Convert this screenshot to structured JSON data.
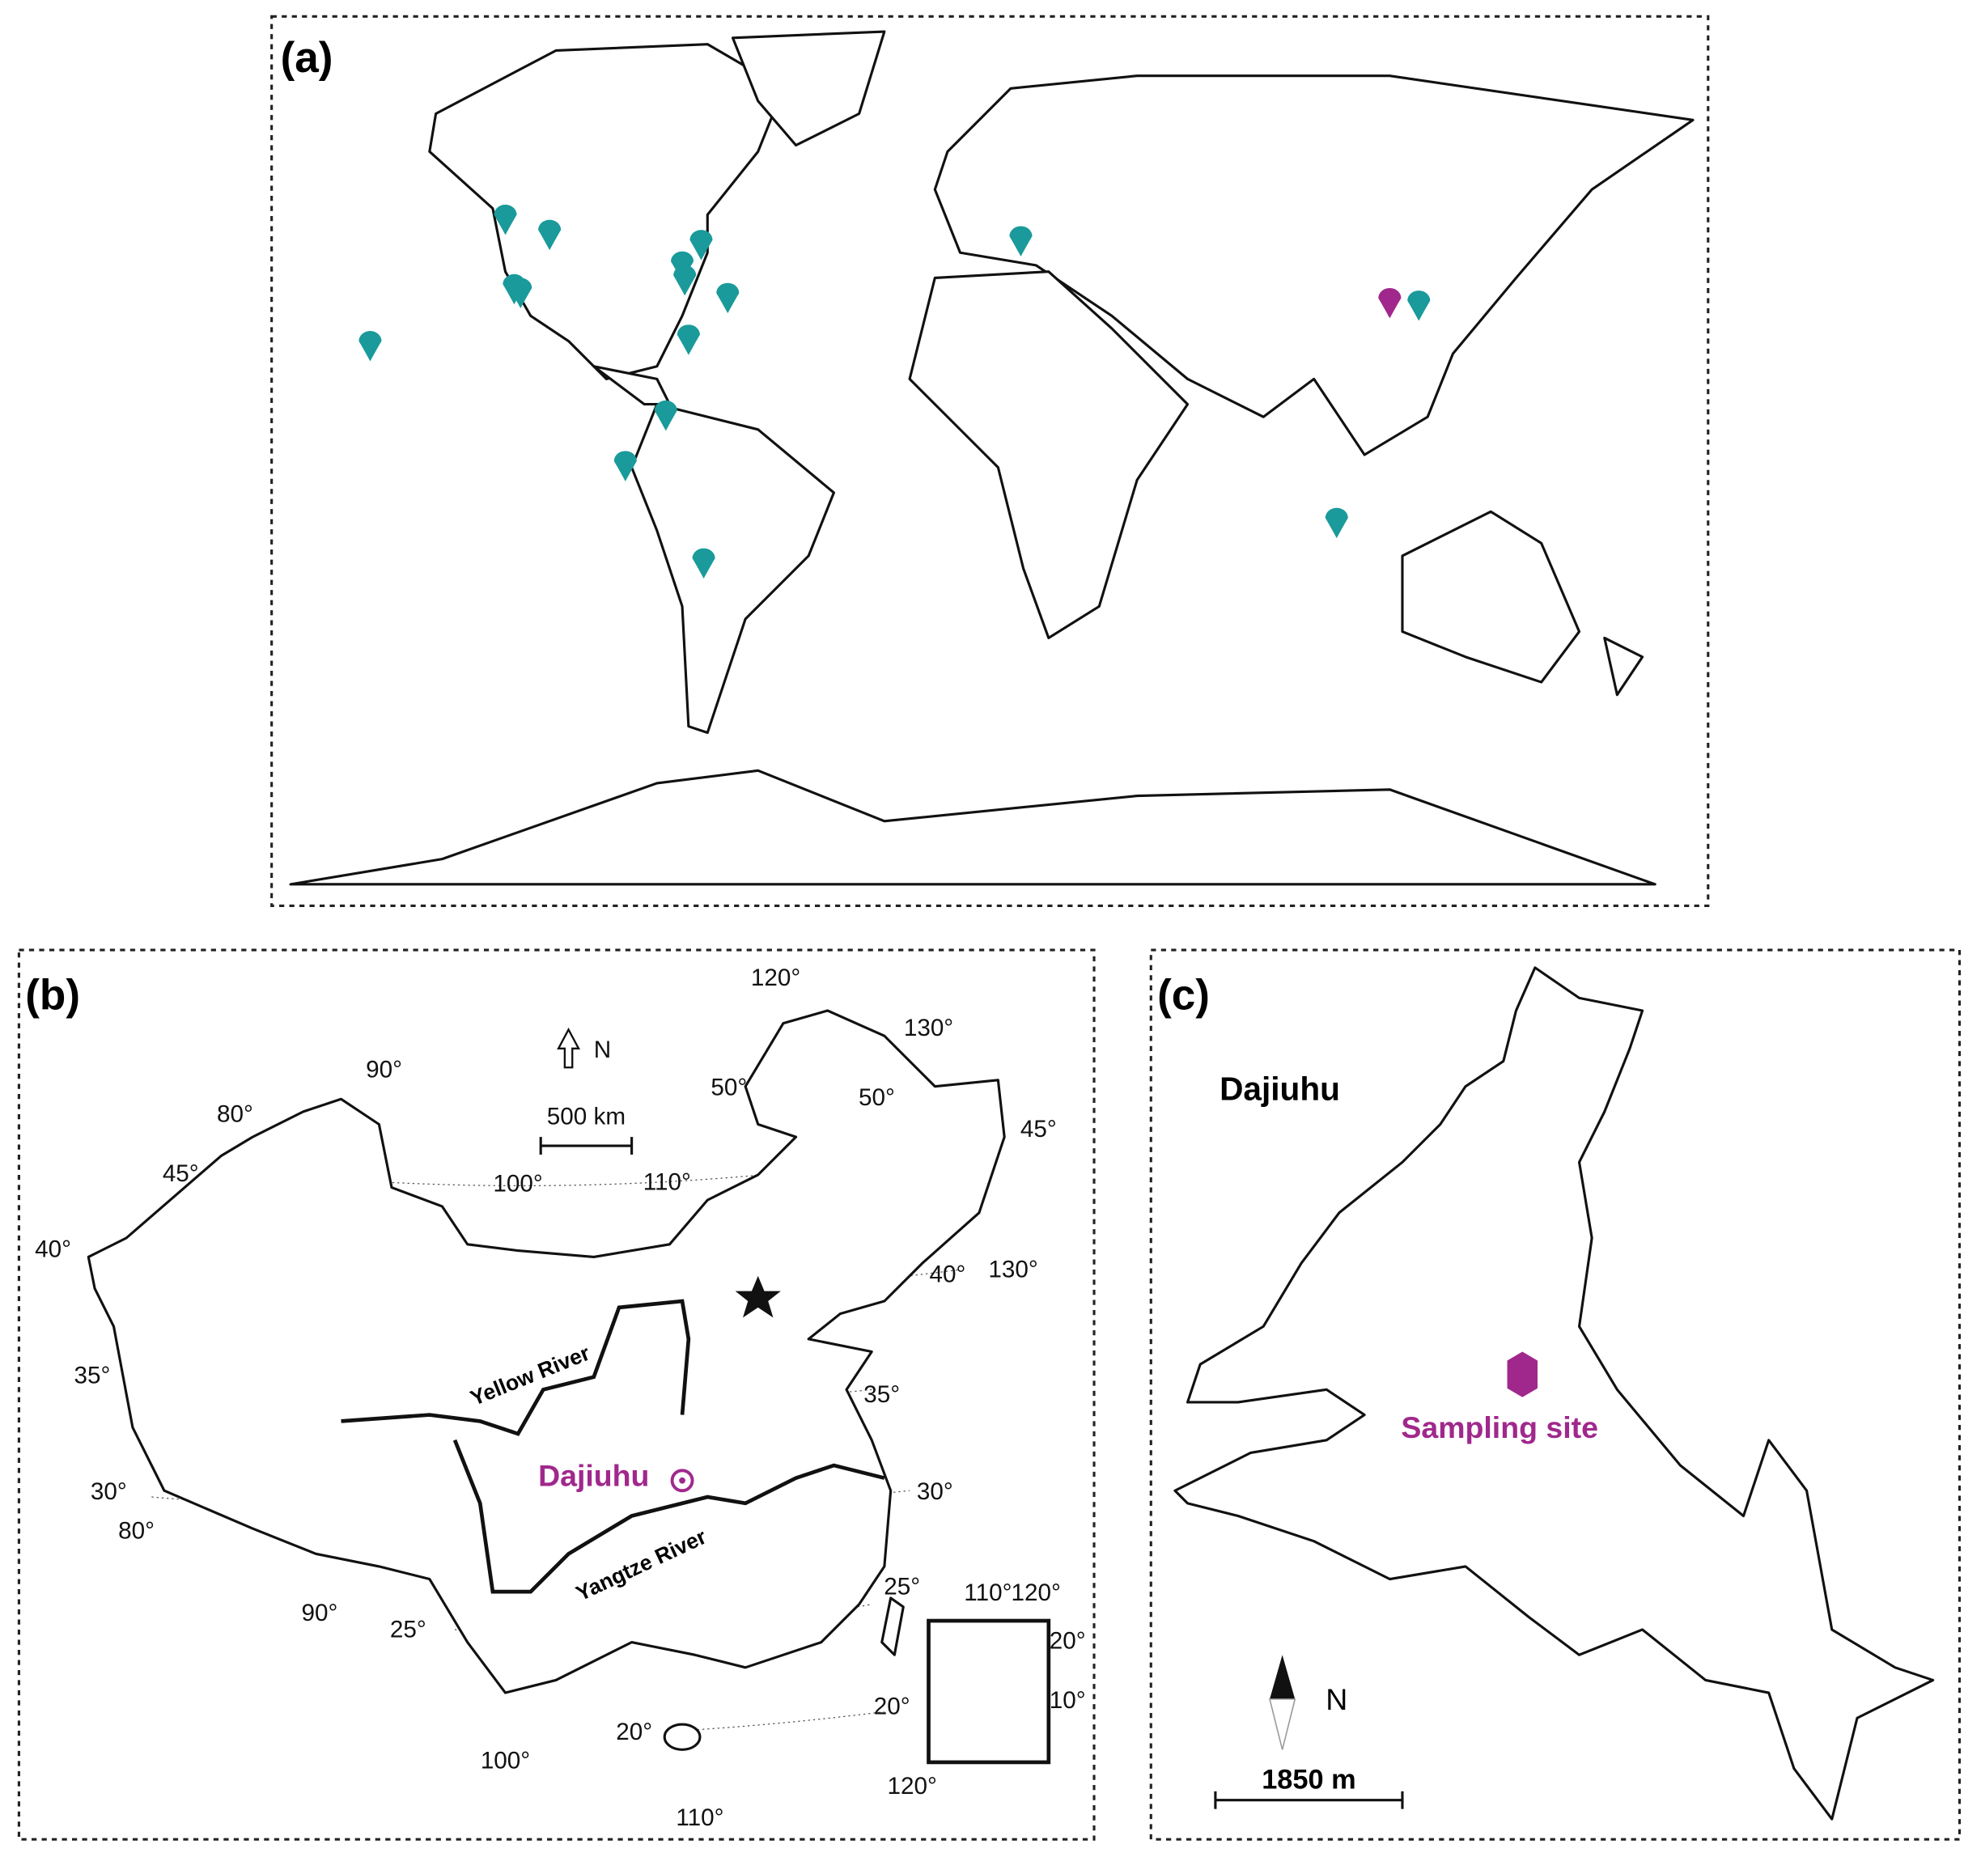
{
  "panels": [
    {
      "label": "(a)"
    },
    {
      "label": "(b)",
      "north": "N",
      "scale": "500 km",
      "site": "Dajiuhu",
      "rivers": [
        "Yellow River",
        "Yangtze River"
      ],
      "graticule_labels": [
        "120°",
        "130°",
        "90°",
        "80°",
        "50°",
        "50°",
        "45°",
        "45°",
        "100°",
        "110°",
        "40°",
        "40°",
        "130°",
        "35°",
        "35°",
        "30°",
        "80°",
        "30°",
        "90°",
        "25°",
        "25°",
        "110°",
        "120°",
        "20°",
        "10°",
        "20°",
        "20°",
        "100°",
        "120°",
        "110°"
      ]
    },
    {
      "label": "(c)",
      "lake": "Dajiuhu",
      "site": "Sampling site",
      "north": "N",
      "scale": "1850 m"
    }
  ]
}
